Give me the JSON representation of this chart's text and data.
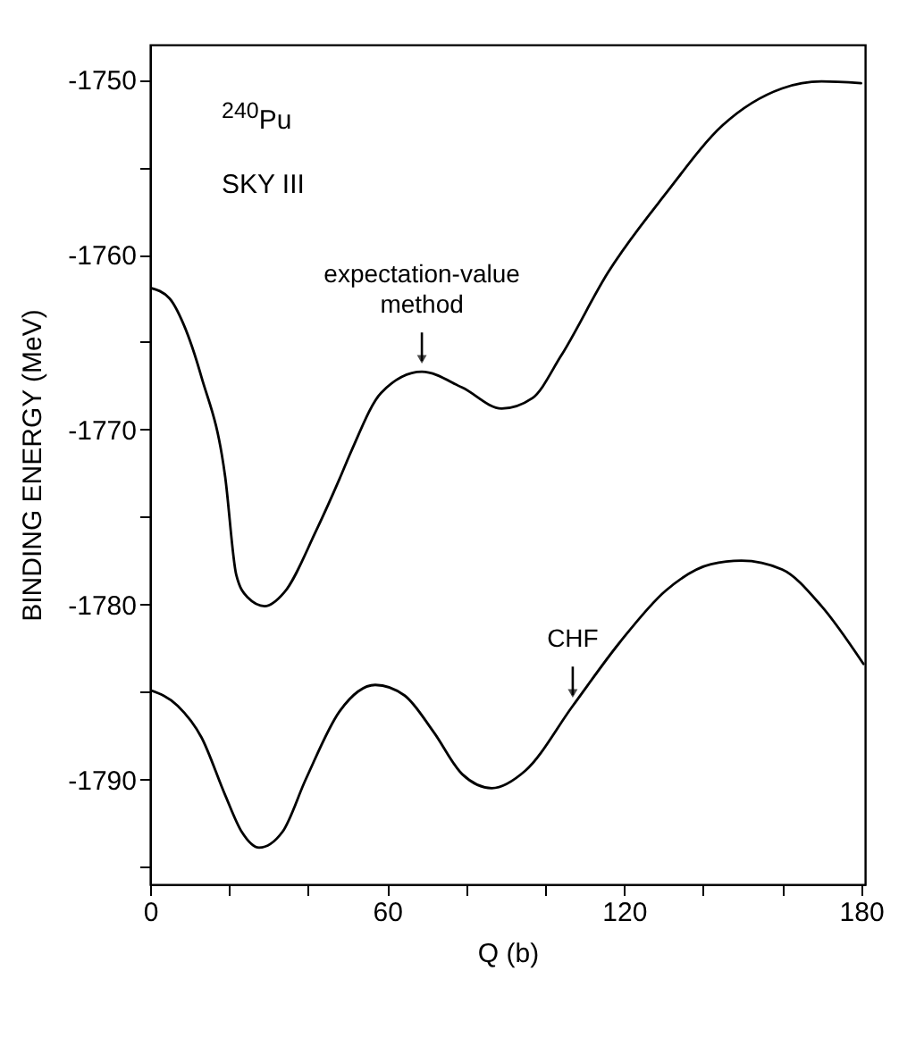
{
  "chart_data": {
    "type": "line",
    "xlabel": "Q (b)",
    "ylabel": "BINDING ENERGY (MeV)",
    "annotations": [
      "$^{240}$Pu",
      "SKY III",
      {
        "text": "expectation-value method",
        "x": 68.8,
        "y": -1766.7
      },
      {
        "text": "CHF",
        "x": 107,
        "y": -1785.8
      }
    ],
    "series": [
      {
        "color": "#000000",
        "x": [
          0,
          4.9,
          8.5,
          13,
          19,
          21.8,
          24.7,
          29,
          34,
          42,
          48,
          51,
          58.5,
          68.8,
          79,
          89,
          96.8,
          104,
          116,
          130.6,
          145,
          160,
          170,
          180
        ],
        "values": [
          -1761.9,
          -1762.5,
          -1764,
          -1767,
          -1772.7,
          -1778.3,
          -1779.6,
          -1780.1,
          -1779.3,
          -1775.8,
          -1772.8,
          -1771.2,
          -1767.9,
          -1766.7,
          -1767.6,
          -1768.8,
          -1768.2,
          -1765.8,
          -1761,
          -1756.5,
          -1752.6,
          -1750.5,
          -1750.1,
          -1750.2
        ]
      },
      {
        "color": "#000000",
        "x": [
          0,
          7,
          13,
          19,
          23.2,
          27.6,
          33.5,
          39.4,
          48,
          57,
          64.4,
          71.8,
          79,
          86.5,
          95,
          107,
          118.8,
          130.6,
          142,
          149.7,
          160,
          170,
          180.6
        ],
        "values": [
          -1784.9,
          -1785.8,
          -1787.6,
          -1790.9,
          -1793,
          -1793.9,
          -1793,
          -1790,
          -1786.1,
          -1784.6,
          -1785.2,
          -1787.3,
          -1789.7,
          -1790.5,
          -1789.5,
          -1785.8,
          -1782.2,
          -1779.2,
          -1777.7,
          -1777.5,
          -1778,
          -1780.1,
          -1783.4
        ]
      }
    ],
    "xlim": [
      0,
      181
    ],
    "ylim": [
      -1796,
      -1748
    ],
    "xticks": [
      0,
      {
        "value": 20,
        "label": null
      },
      {
        "value": 40,
        "label": null
      },
      60,
      {
        "value": 80,
        "label": null
      },
      {
        "value": 100,
        "label": null
      },
      120,
      {
        "value": 140,
        "label": null
      },
      {
        "value": 160,
        "label": null
      },
      180
    ],
    "yticks": [
      {
        "value": -1795,
        "label": null
      },
      -1790,
      {
        "value": -1785,
        "label": null
      },
      -1780,
      {
        "value": -1775,
        "label": null
      },
      -1770,
      {
        "value": -1765,
        "label": null
      },
      -1760,
      {
        "value": -1755,
        "label": null
      },
      -1750
    ],
    "grid": false,
    "legend": false,
    "marker": "none",
    "line_style": "solid"
  }
}
